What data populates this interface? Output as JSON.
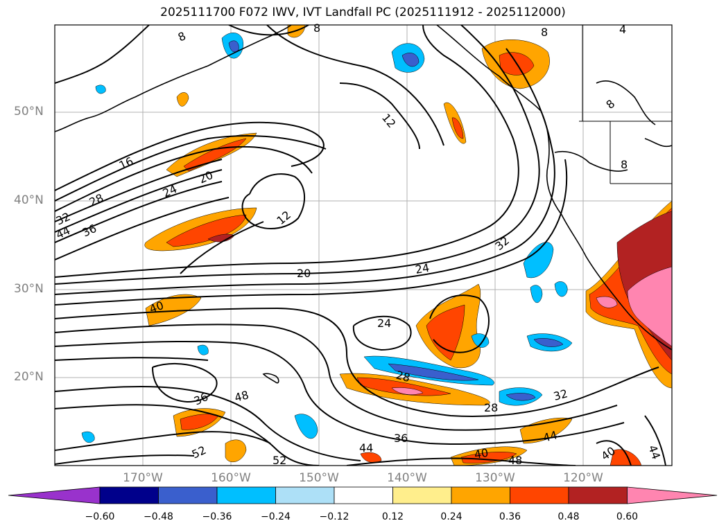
{
  "title": "2025111700 F072 IWV, IVT Landfall PC (2025111912 - 2025112000)",
  "axes": {
    "lat_labels": [
      "50°N",
      "40°N",
      "30°N",
      "20°N"
    ],
    "lon_labels": [
      "170°W",
      "160°W",
      "150°W",
      "140°W",
      "130°W",
      "120°W"
    ]
  },
  "contour_labels": [
    "8",
    "8",
    "8",
    "4",
    "12",
    "12",
    "16",
    "20",
    "28",
    "24",
    "32",
    "44",
    "36",
    "20",
    "24",
    "32",
    "40",
    "24",
    "28",
    "28",
    "32",
    "36",
    "48",
    "36",
    "44",
    "52",
    "52",
    "40",
    "48",
    "44",
    "40",
    "44",
    "8",
    "8"
  ],
  "colorbar": {
    "ticks": [
      "−0.60",
      "−0.48",
      "−0.36",
      "−0.24",
      "−0.12",
      "0.12",
      "0.24",
      "0.36",
      "0.48",
      "0.60"
    ],
    "colors": [
      "#9932CC",
      "#00008B",
      "#3A5FCD",
      "#00BFFF",
      "#ADE0F7",
      "#FFFFFF",
      "#FFEE8C",
      "#FFA500",
      "#FF4500",
      "#B22222",
      "#FF85B0"
    ]
  }
}
